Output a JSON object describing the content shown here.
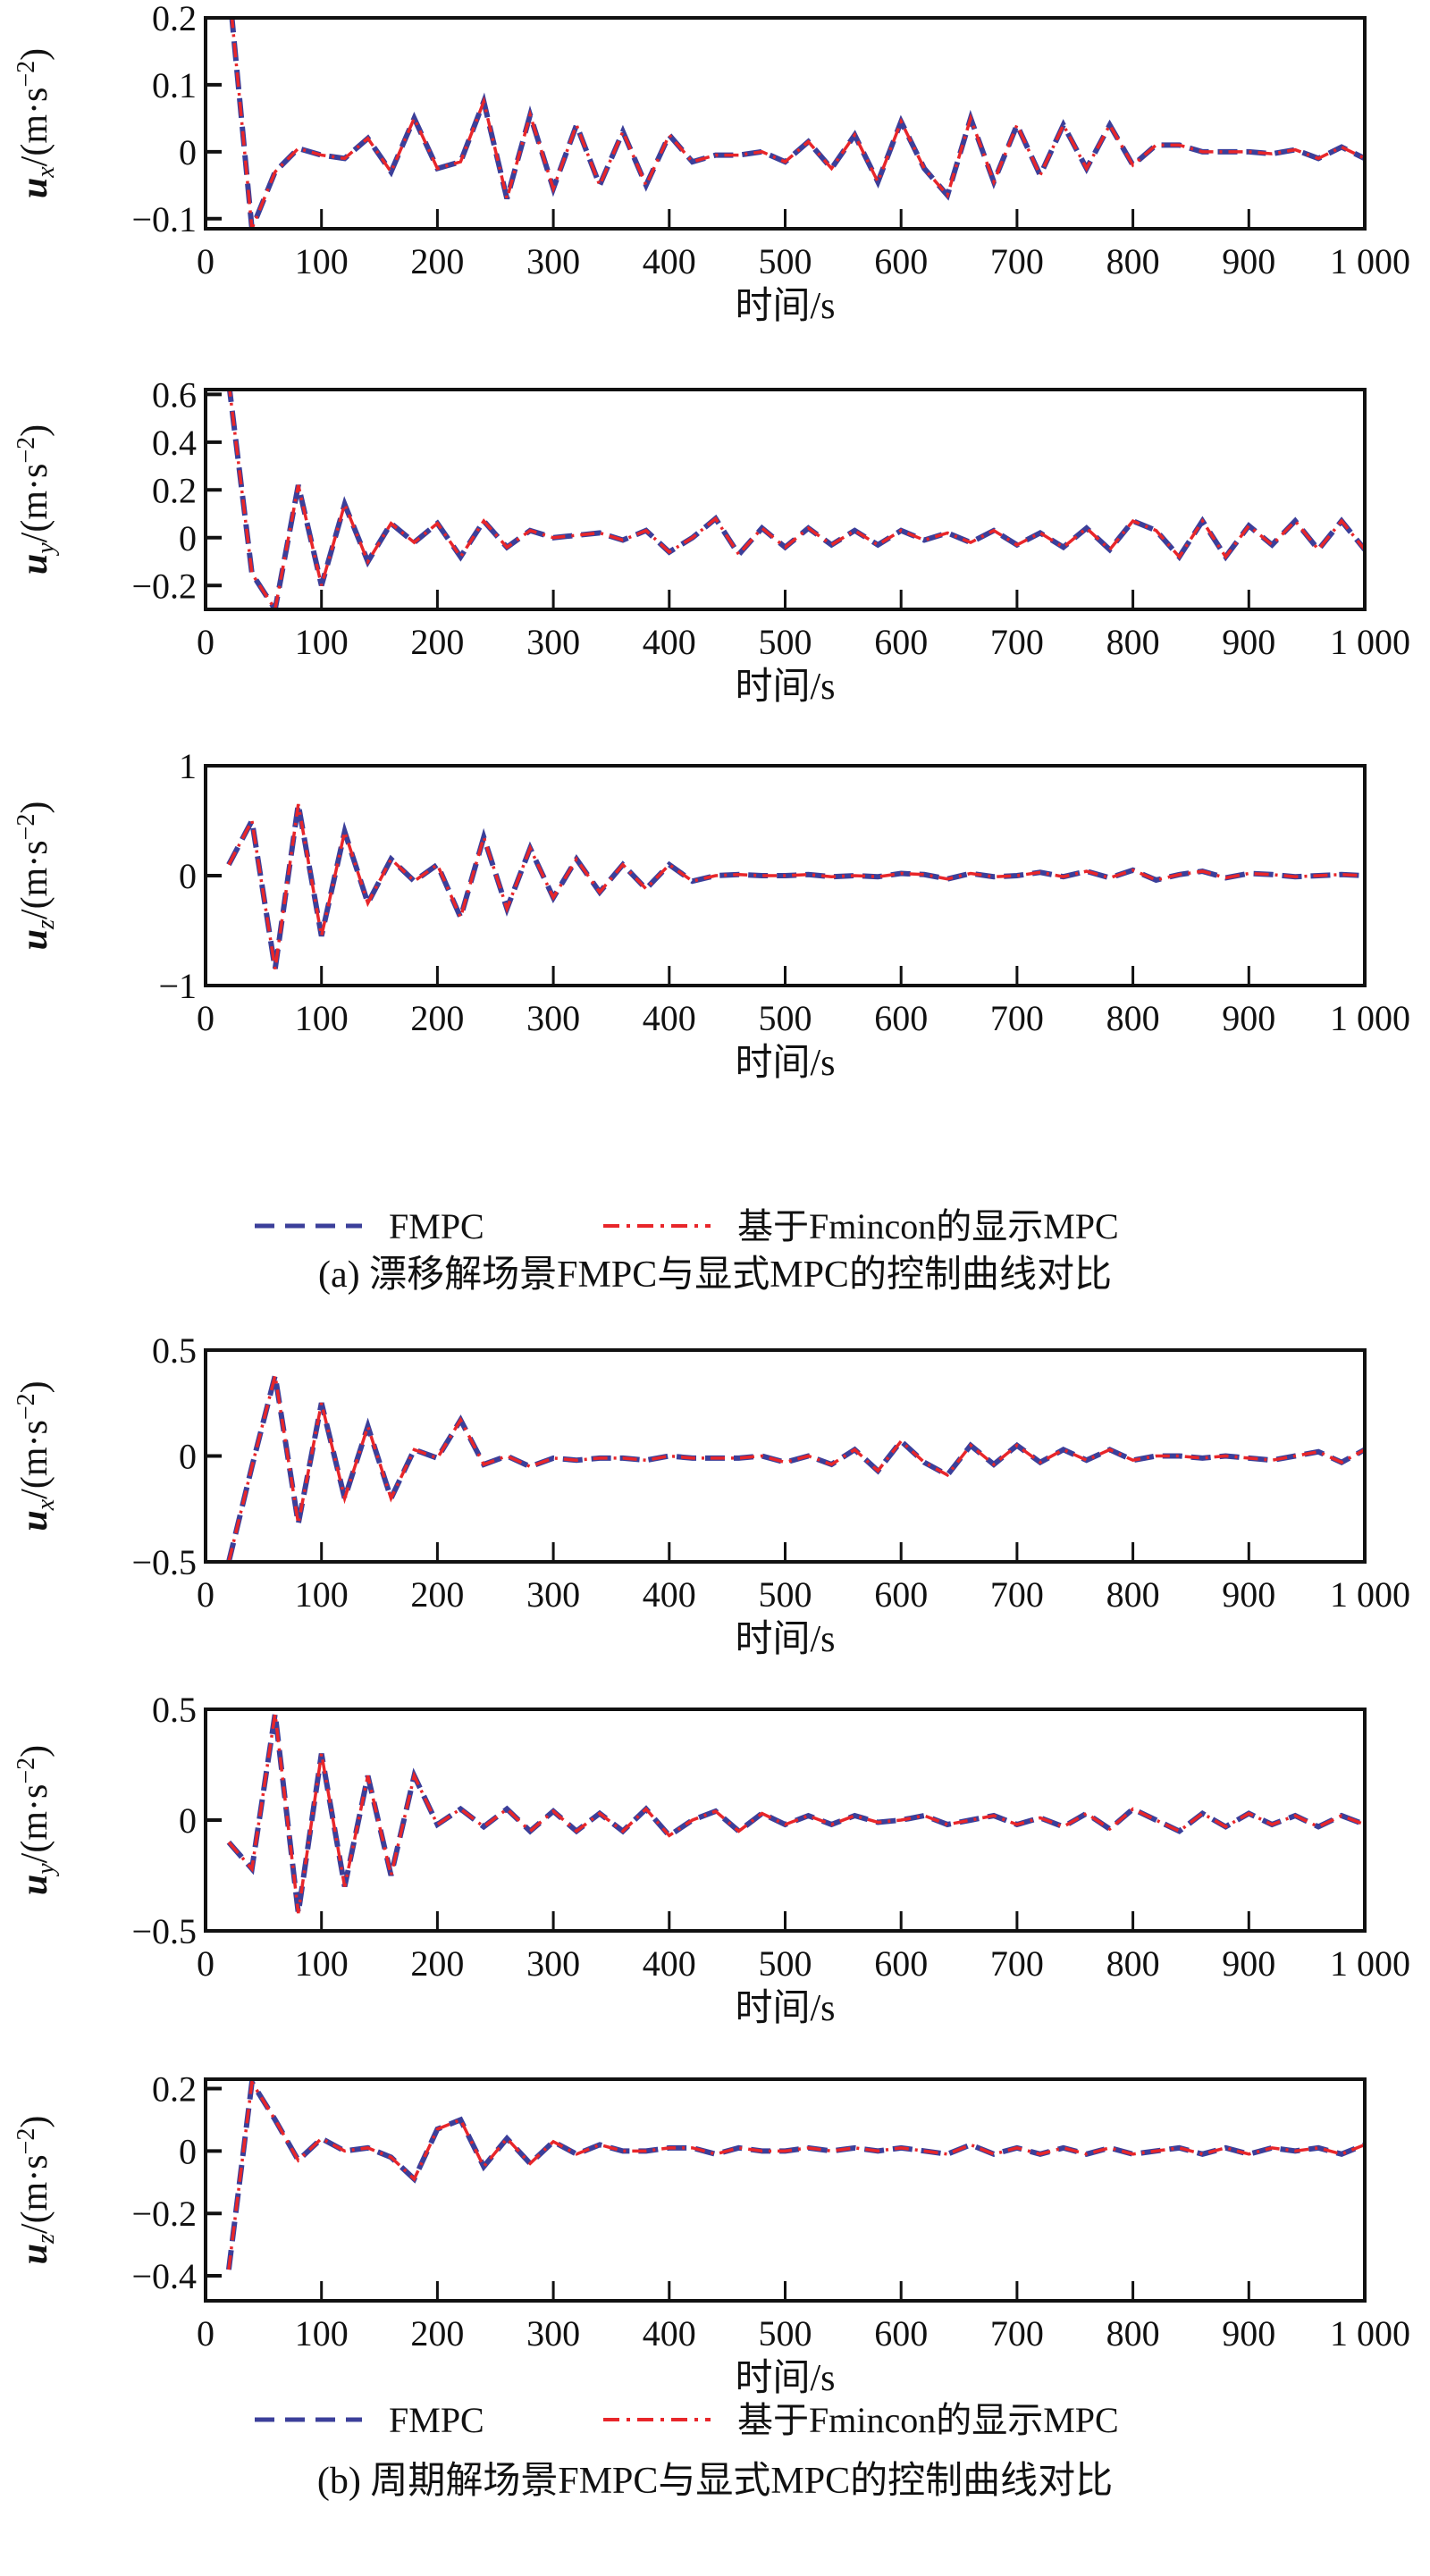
{
  "colors": {
    "fmpc": "#3b3f9a",
    "explicit": "#e8262a",
    "axis": "#111111"
  },
  "legend": [
    {
      "label": "FMPC",
      "style": "dashed",
      "color": "#3b3f9a"
    },
    {
      "label": "基于Fmincon的显示MPC",
      "style": "dash-dot",
      "color": "#e8262a"
    }
  ],
  "captions": {
    "a": "(a) 漂移解场景FMPC与显式MPC的控制曲线对比",
    "b": "(b) 周期解场景FMPC与显式MPC的控制曲线对比"
  },
  "chart_data": [
    {
      "type": "line",
      "group": "a",
      "xlabel": "时间/s",
      "ylabel": {
        "var": "u",
        "sub": "x",
        "unit": "/(m·s",
        "sup": "−2",
        "close": ")"
      },
      "xlim": [
        0,
        1000
      ],
      "ylim": [
        -0.115,
        0.2
      ],
      "xticks": [
        "0",
        "100",
        "200",
        "300",
        "400",
        "500",
        "600",
        "700",
        "800",
        "900",
        "1 000"
      ],
      "yticks": [
        -0.1,
        0,
        0.1,
        0.2
      ],
      "ytick_labels": [
        "−0.1",
        "0",
        "0.1",
        "0.2"
      ],
      "y": [
        0.25,
        -0.115,
        -0.03,
        0.005,
        -0.005,
        -0.01,
        0.02,
        -0.03,
        0.05,
        -0.025,
        -0.015,
        0.075,
        -0.07,
        0.055,
        -0.055,
        0.04,
        -0.05,
        0.03,
        -0.05,
        0.025,
        -0.015,
        -0.005,
        -0.005,
        0.0,
        -0.015,
        0.015,
        -0.025,
        0.025,
        -0.045,
        0.045,
        -0.025,
        -0.065,
        0.05,
        -0.045,
        0.04,
        -0.035,
        0.04,
        -0.025,
        0.04,
        -0.02,
        0.01,
        0.01,
        0.0,
        0.0,
        0.0,
        -0.003,
        0.003,
        -0.01,
        0.007,
        -0.01
      ]
    },
    {
      "type": "line",
      "group": "a",
      "xlabel": "时间/s",
      "ylabel": {
        "var": "u",
        "sub": "y",
        "unit": "/(m·s",
        "sup": "−2",
        "close": ")"
      },
      "xlim": [
        0,
        1000
      ],
      "ylim": [
        -0.3,
        0.62
      ],
      "xticks": [
        "0",
        "100",
        "200",
        "300",
        "400",
        "500",
        "600",
        "700",
        "800",
        "900",
        "1 000"
      ],
      "yticks": [
        -0.2,
        0,
        0.2,
        0.4,
        0.6
      ],
      "ytick_labels": [
        "−0.2",
        "0",
        "0.2",
        "0.4",
        "0.6"
      ],
      "y": [
        0.65,
        -0.15,
        -0.3,
        0.22,
        -0.2,
        0.14,
        -0.1,
        0.06,
        -0.02,
        0.06,
        -0.08,
        0.07,
        -0.04,
        0.03,
        0.0,
        0.01,
        0.02,
        -0.01,
        0.03,
        -0.06,
        0.0,
        0.08,
        -0.07,
        0.04,
        -0.04,
        0.04,
        -0.03,
        0.03,
        -0.03,
        0.03,
        -0.01,
        0.02,
        -0.02,
        0.03,
        -0.03,
        0.02,
        -0.04,
        0.04,
        -0.05,
        0.07,
        0.03,
        -0.08,
        0.07,
        -0.08,
        0.05,
        -0.03,
        0.07,
        -0.05,
        0.07,
        -0.05
      ]
    },
    {
      "type": "line",
      "group": "a",
      "xlabel": "时间/s",
      "ylabel": {
        "var": "u",
        "sub": "z",
        "unit": "/(m·s",
        "sup": "−2",
        "close": ")"
      },
      "xlim": [
        0,
        1000
      ],
      "ylim": [
        -1,
        1
      ],
      "xticks": [
        "0",
        "100",
        "200",
        "300",
        "400",
        "500",
        "600",
        "700",
        "800",
        "900",
        "1 000"
      ],
      "yticks": [
        -1,
        0,
        1
      ],
      "ytick_labels": [
        "−1",
        "0",
        "1"
      ],
      "y": [
        0.1,
        0.5,
        -0.85,
        0.65,
        -0.55,
        0.4,
        -0.25,
        0.15,
        -0.05,
        0.1,
        -0.38,
        0.35,
        -0.3,
        0.25,
        -0.2,
        0.15,
        -0.15,
        0.1,
        -0.12,
        0.1,
        -0.05,
        0.0,
        0.01,
        0.0,
        0.0,
        0.01,
        -0.01,
        0.0,
        -0.01,
        0.02,
        0.01,
        -0.03,
        0.02,
        -0.01,
        0.0,
        0.03,
        -0.01,
        0.04,
        -0.02,
        0.05,
        -0.04,
        0.01,
        0.04,
        -0.02,
        0.02,
        0.01,
        -0.01,
        0.0,
        0.01,
        0.0
      ]
    },
    {
      "type": "line",
      "group": "b",
      "xlabel": "时间/s",
      "ylabel": {
        "var": "u",
        "sub": "x",
        "unit": "/(m·s",
        "sup": "−2",
        "close": ")"
      },
      "xlim": [
        0,
        1000
      ],
      "ylim": [
        -0.5,
        0.5
      ],
      "xticks": [
        "0",
        "100",
        "200",
        "300",
        "400",
        "500",
        "600",
        "700",
        "800",
        "900",
        "1 000"
      ],
      "yticks": [
        -0.5,
        0,
        0.5
      ],
      "ytick_labels": [
        "−0.5",
        "0",
        "0.5"
      ],
      "y": [
        -0.5,
        -0.05,
        0.38,
        -0.32,
        0.25,
        -0.2,
        0.14,
        -0.2,
        0.03,
        -0.01,
        0.17,
        -0.04,
        0.0,
        -0.05,
        -0.01,
        -0.02,
        -0.01,
        -0.01,
        -0.02,
        0.0,
        -0.01,
        -0.01,
        -0.01,
        0.0,
        -0.03,
        0.0,
        -0.04,
        0.03,
        -0.07,
        0.07,
        -0.03,
        -0.09,
        0.05,
        -0.04,
        0.05,
        -0.03,
        0.03,
        -0.02,
        0.03,
        -0.02,
        0.0,
        0.0,
        -0.01,
        0.0,
        -0.01,
        -0.02,
        0.0,
        0.02,
        -0.03,
        0.03
      ]
    },
    {
      "type": "line",
      "group": "b",
      "xlabel": "时间/s",
      "ylabel": {
        "var": "u",
        "sub": "y",
        "unit": "/(m·s",
        "sup": "−2",
        "close": ")"
      },
      "xlim": [
        0,
        1000
      ],
      "ylim": [
        -0.5,
        0.5
      ],
      "xticks": [
        "0",
        "100",
        "200",
        "300",
        "400",
        "500",
        "600",
        "700",
        "800",
        "900",
        "1 000"
      ],
      "yticks": [
        -0.5,
        0,
        0.5
      ],
      "ytick_labels": [
        "−0.5",
        "0",
        "0.5"
      ],
      "y": [
        -0.1,
        -0.22,
        0.48,
        -0.42,
        0.3,
        -0.3,
        0.2,
        -0.25,
        0.2,
        -0.02,
        0.05,
        -0.03,
        0.05,
        -0.05,
        0.04,
        -0.05,
        0.03,
        -0.05,
        0.05,
        -0.07,
        0.0,
        0.04,
        -0.05,
        0.03,
        -0.02,
        0.02,
        -0.02,
        0.02,
        -0.01,
        0.0,
        0.02,
        -0.02,
        0.0,
        0.02,
        -0.02,
        0.01,
        -0.03,
        0.03,
        -0.04,
        0.05,
        0.0,
        -0.05,
        0.03,
        -0.03,
        0.03,
        -0.02,
        0.02,
        -0.03,
        0.02,
        -0.02
      ]
    },
    {
      "type": "line",
      "group": "b",
      "xlabel": "时间/s",
      "ylabel": {
        "var": "u",
        "sub": "z",
        "unit": "/(m·s",
        "sup": "−2",
        "close": ")"
      },
      "xlim": [
        0,
        1000
      ],
      "ylim": [
        -0.48,
        0.23
      ],
      "xticks": [
        "0",
        "100",
        "200",
        "300",
        "400",
        "500",
        "600",
        "700",
        "800",
        "900",
        "1 000"
      ],
      "yticks": [
        -0.4,
        -0.2,
        0,
        0.2
      ],
      "ytick_labels": [
        "−0.4",
        "−0.2",
        "0",
        "0.2"
      ],
      "y": [
        -0.38,
        0.22,
        0.1,
        -0.03,
        0.04,
        0.0,
        0.01,
        -0.02,
        -0.09,
        0.07,
        0.1,
        -0.05,
        0.04,
        -0.04,
        0.03,
        -0.01,
        0.02,
        0.0,
        0.0,
        0.01,
        0.01,
        -0.01,
        0.01,
        0.0,
        0.0,
        0.01,
        0.0,
        0.01,
        0.0,
        0.01,
        0.0,
        -0.01,
        0.02,
        -0.01,
        0.01,
        -0.01,
        0.01,
        -0.01,
        0.01,
        -0.01,
        0.0,
        0.01,
        -0.01,
        0.01,
        -0.01,
        0.01,
        0.0,
        0.01,
        -0.01,
        0.02
      ]
    }
  ],
  "x_step": 20
}
